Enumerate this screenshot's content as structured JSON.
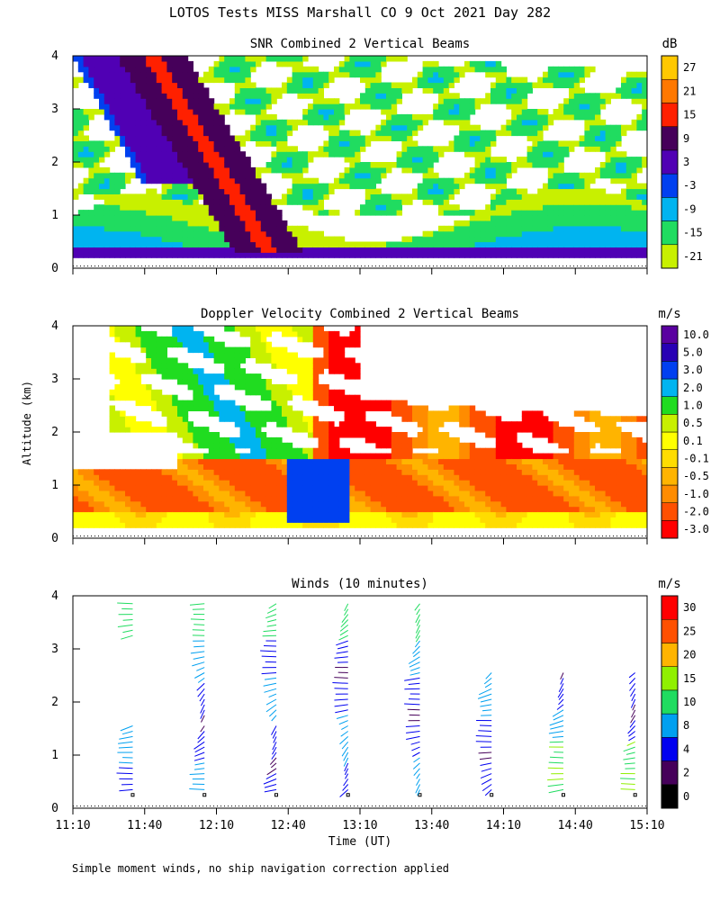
{
  "figure": {
    "title": "LOTOS Tests MISS Marshall CO   9 Oct 2021 Day 282",
    "ylabel": "Altitude (km)",
    "xlabel": "Time (UT)",
    "footnote": "Simple moment winds, no ship navigation correction applied"
  },
  "chart_data": [
    {
      "id": "snr",
      "type": "heatmap",
      "title": "SNR Combined 2 Vertical Beams",
      "ylabel": "Altitude (km)",
      "ylim": [
        0,
        4
      ],
      "yticks": [
        "0",
        "1",
        "2",
        "3",
        "4"
      ],
      "colorbar": {
        "unit": "dB",
        "levels": [
          "-21",
          "-15",
          "-9",
          "-3",
          "3",
          "9",
          "15",
          "21",
          "27"
        ],
        "colors": [
          "#c8f000",
          "#20dc60",
          "#00b4f0",
          "#0040f0",
          "#5000b4",
          "#46005a",
          "#ff2000",
          "#ff7800",
          "#ffc800"
        ]
      }
    },
    {
      "id": "doppler",
      "type": "heatmap",
      "title": "Doppler Velocity Combined 2 Vertical Beams",
      "ylabel": "Altitude (km)",
      "ylim": [
        0,
        4
      ],
      "yticks": [
        "0",
        "1",
        "2",
        "3",
        "4"
      ],
      "colorbar": {
        "unit": "m/s",
        "levels": [
          "-3.0",
          "-2.0",
          "-1.0",
          "-0.5",
          "-0.1",
          "0.1",
          "0.5",
          "1.0",
          "2.0",
          "3.0",
          "5.0",
          "10.0"
        ],
        "colors": [
          "#ff0000",
          "#ff5000",
          "#ff8c00",
          "#ffb400",
          "#ffdc00",
          "#ffff00",
          "#c8f000",
          "#20dc20",
          "#00b4f0",
          "#0040f0",
          "#2800b4",
          "#5a00a0"
        ]
      }
    },
    {
      "id": "winds",
      "type": "scatter",
      "title": "Winds (10 minutes)",
      "ylabel": "Altitude (km)",
      "xlabel": "Time (UT)",
      "ylim": [
        0,
        4
      ],
      "yticks": [
        "0",
        "1",
        "2",
        "3",
        "4"
      ],
      "xticks": [
        "11:10",
        "11:40",
        "12:10",
        "12:40",
        "13:10",
        "13:40",
        "14:10",
        "14:40",
        "15:10"
      ],
      "profile_times": [
        "11:35",
        "12:05",
        "12:35",
        "13:05",
        "13:35",
        "14:05",
        "14:35",
        "15:05"
      ],
      "colorbar": {
        "unit": "m/s",
        "levels": [
          "0",
          "2",
          "4",
          "8",
          "10",
          "15",
          "20",
          "25",
          "30"
        ],
        "colors": [
          "#000000",
          "#46005a",
          "#0000f0",
          "#00a0f0",
          "#20dc60",
          "#90f000",
          "#ffb400",
          "#ff5000",
          "#ff0000"
        ]
      }
    }
  ]
}
